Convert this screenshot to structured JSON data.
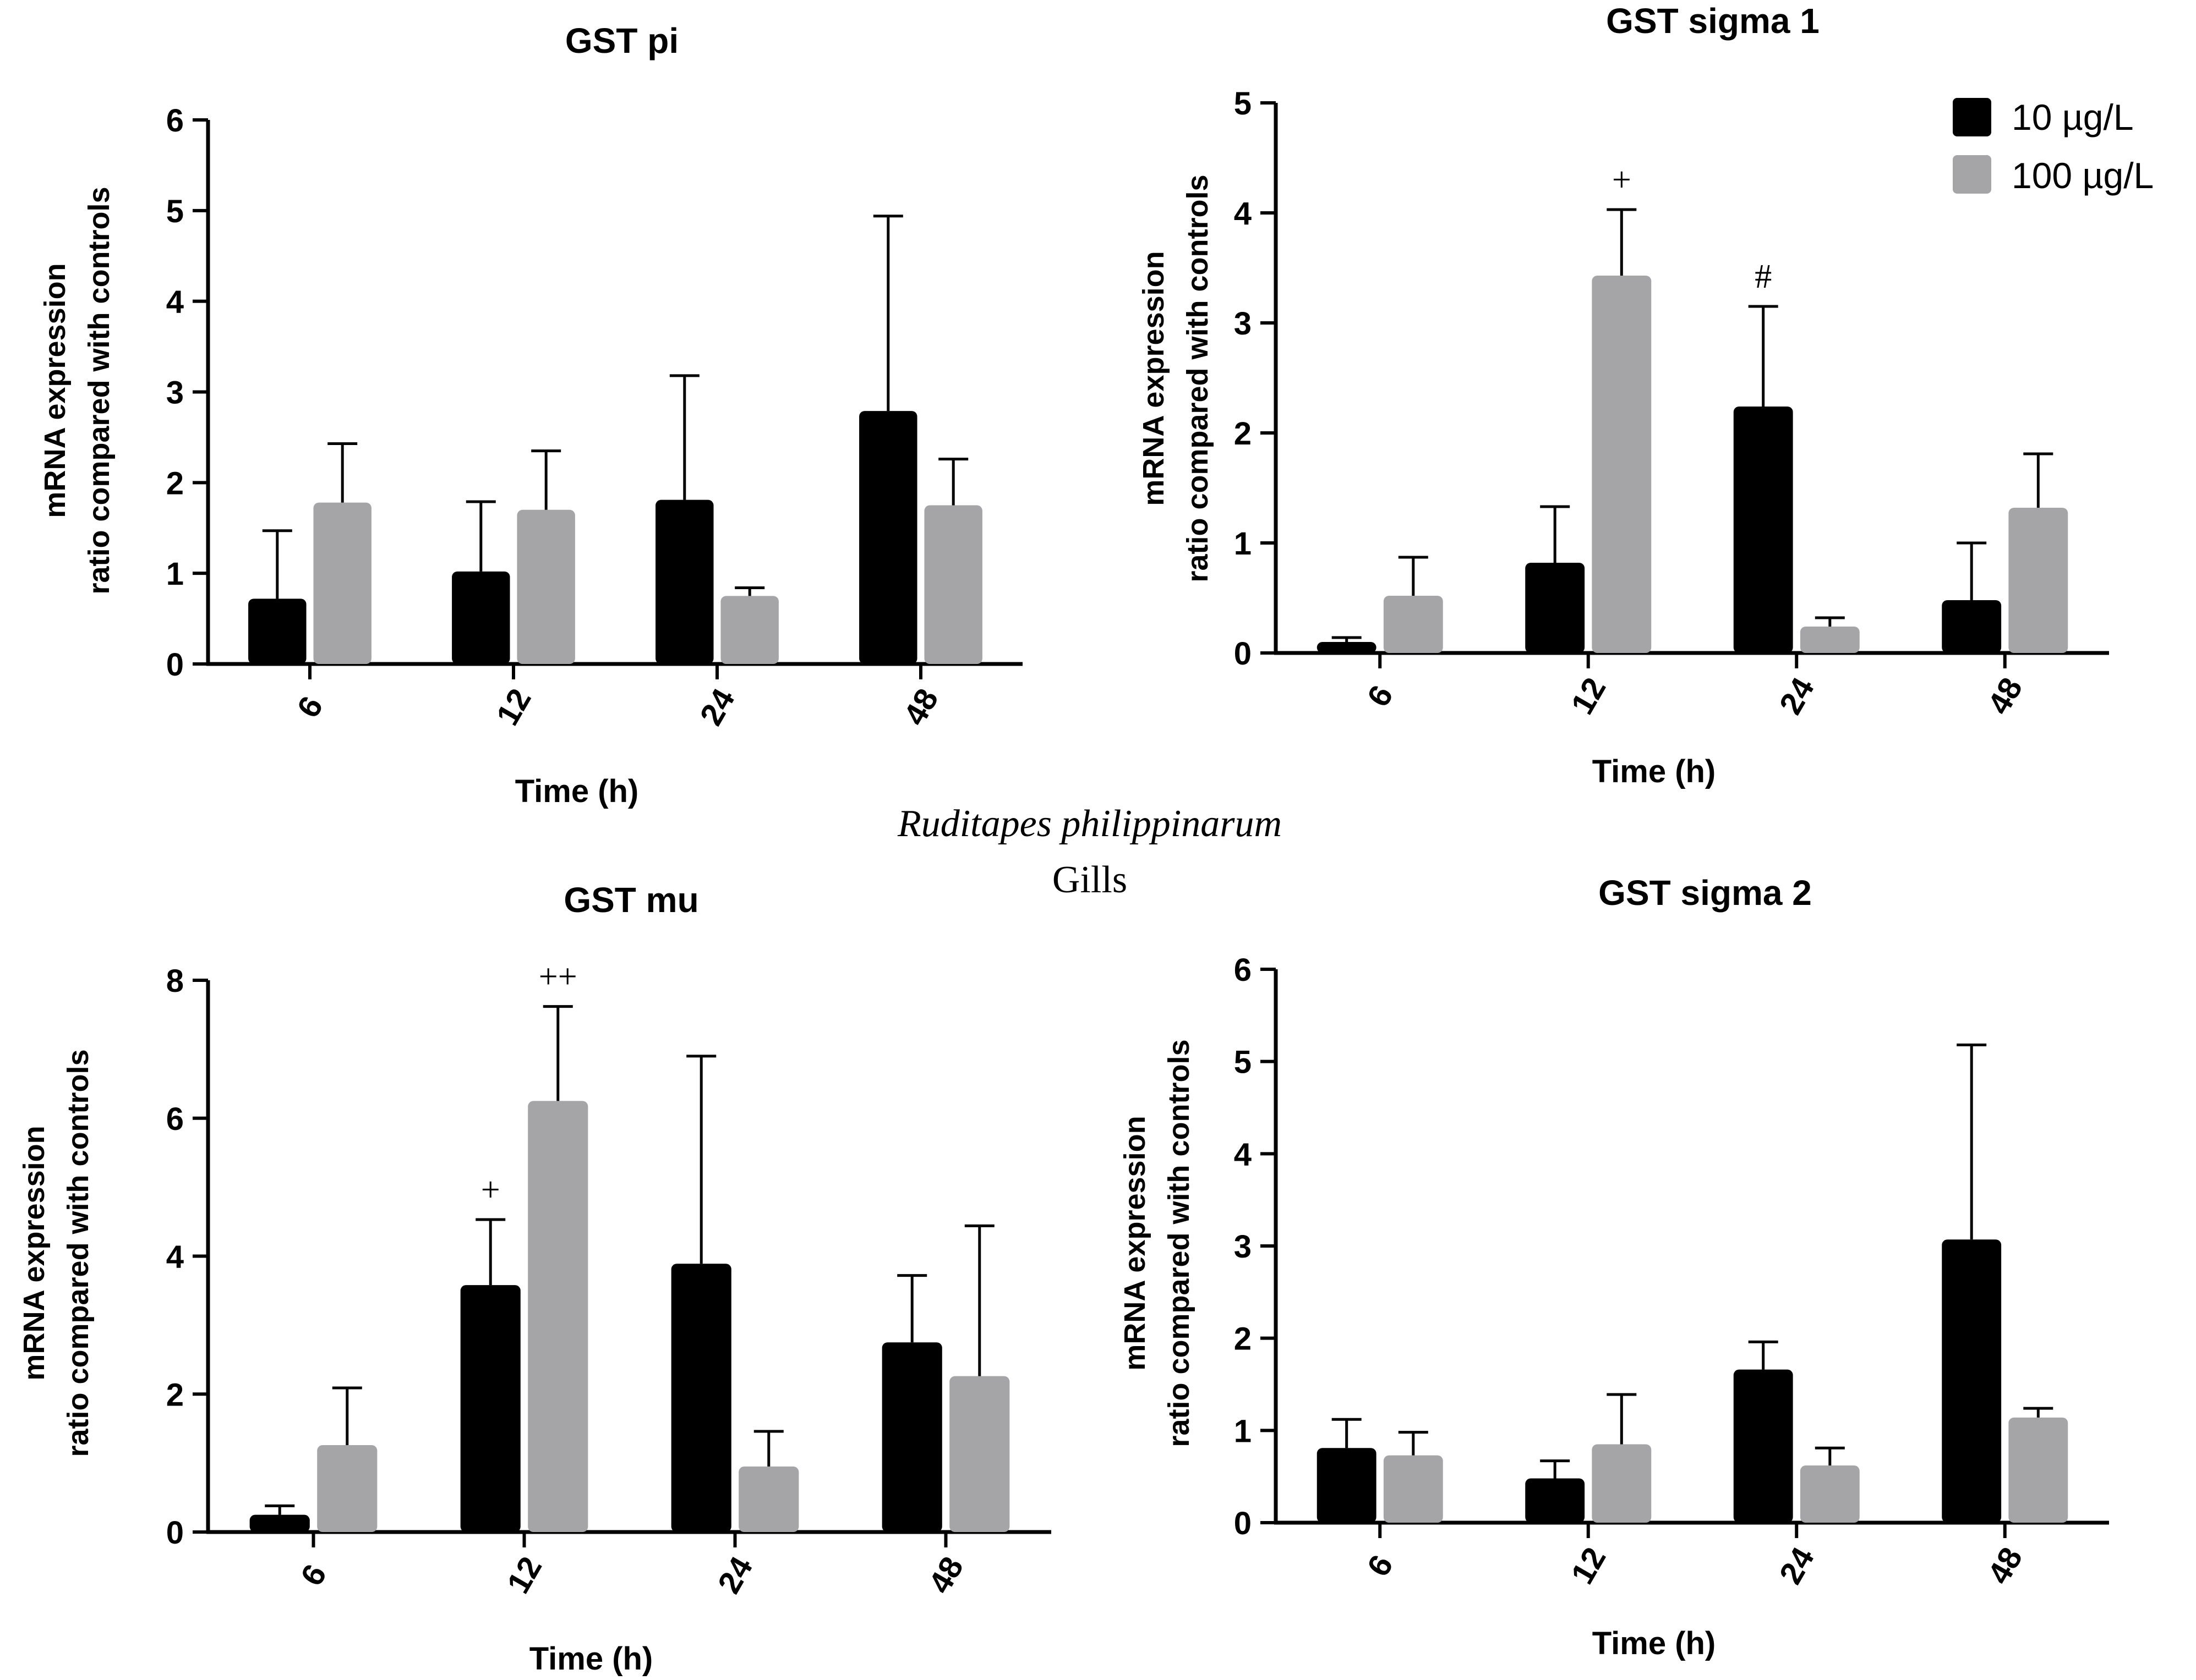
{
  "figure": {
    "species": "Ruditapes philippinarum",
    "tissue": "Gills"
  },
  "legend": {
    "entries": [
      {
        "label": "10 µg/L",
        "color": "#000000"
      },
      {
        "label": "100 µg/L",
        "color": "#a5a5a7"
      }
    ]
  },
  "chart_data": [
    {
      "id": "gst-pi",
      "type": "bar",
      "title": "GST pi",
      "xlabel": "Time (h)",
      "ylabel": [
        "mRNA expression",
        "ratio compared with controls"
      ],
      "categories": [
        "6",
        "12",
        "24",
        "48"
      ],
      "ylim": [
        0,
        6
      ],
      "yticks": [
        "0",
        "1",
        "2",
        "3",
        "4",
        "5",
        "6"
      ],
      "series": [
        {
          "name": "10 µg/L",
          "color": "#000000",
          "values": [
            0.72,
            1.02,
            1.81,
            2.79
          ],
          "errors": [
            0.75,
            0.77,
            1.37,
            2.15
          ]
        },
        {
          "name": "100 µg/L",
          "color": "#a5a5a7",
          "values": [
            1.78,
            1.7,
            0.75,
            1.75
          ],
          "errors": [
            0.65,
            0.65,
            0.09,
            0.51
          ]
        }
      ],
      "annotations": []
    },
    {
      "id": "gst-sigma-1",
      "type": "bar",
      "title": "GST sigma 1",
      "xlabel": "Time (h)",
      "ylabel": [
        "mRNA expression",
        "ratio compared with controls"
      ],
      "categories": [
        "6",
        "12",
        "24",
        "48"
      ],
      "ylim": [
        0,
        5
      ],
      "yticks": [
        "0",
        "1",
        "2",
        "3",
        "4",
        "5"
      ],
      "series": [
        {
          "name": "10 µg/L",
          "color": "#000000",
          "values": [
            0.1,
            0.82,
            2.24,
            0.48
          ],
          "errors": [
            0.04,
            0.51,
            0.91,
            0.52
          ]
        },
        {
          "name": "100 µg/L",
          "color": "#a5a5a7",
          "values": [
            0.52,
            3.43,
            0.24,
            1.32
          ],
          "errors": [
            0.35,
            0.6,
            0.08,
            0.49
          ]
        }
      ],
      "annotations": [
        {
          "text": "+",
          "category": 1,
          "series": 1
        },
        {
          "text": "#",
          "category": 2,
          "series": 0
        }
      ]
    },
    {
      "id": "gst-mu",
      "type": "bar",
      "title": "GST mu",
      "xlabel": "Time (h)",
      "ylabel": [
        "mRNA expression",
        "ratio compared with controls"
      ],
      "categories": [
        "6",
        "12",
        "24",
        "48"
      ],
      "ylim": [
        0,
        8
      ],
      "yticks": [
        "0",
        "2",
        "4",
        "6",
        "8"
      ],
      "series": [
        {
          "name": "10 µg/L",
          "color": "#000000",
          "values": [
            0.25,
            3.58,
            3.89,
            2.75
          ],
          "errors": [
            0.13,
            0.95,
            3.01,
            0.97
          ]
        },
        {
          "name": "100 µg/L",
          "color": "#a5a5a7",
          "values": [
            1.26,
            6.25,
            0.95,
            2.26
          ],
          "errors": [
            0.83,
            1.37,
            0.51,
            2.18
          ]
        }
      ],
      "annotations": [
        {
          "text": "+",
          "category": 1,
          "series": 0
        },
        {
          "text": "++",
          "category": 1,
          "series": 1
        }
      ]
    },
    {
      "id": "gst-sigma-2",
      "type": "bar",
      "title": "GST sigma 2",
      "xlabel": "Time (h)",
      "ylabel": [
        "mRNA expression",
        "ratio compared with controls"
      ],
      "categories": [
        "6",
        "12",
        "24",
        "48"
      ],
      "ylim": [
        0,
        6
      ],
      "yticks": [
        "0",
        "1",
        "2",
        "3",
        "4",
        "5",
        "6"
      ],
      "series": [
        {
          "name": "10 µg/L",
          "color": "#000000",
          "values": [
            0.81,
            0.48,
            1.66,
            3.07
          ],
          "errors": [
            0.31,
            0.19,
            0.3,
            2.11
          ]
        },
        {
          "name": "100 µg/L",
          "color": "#a5a5a7",
          "values": [
            0.73,
            0.85,
            0.62,
            1.14
          ],
          "errors": [
            0.25,
            0.54,
            0.19,
            0.1
          ]
        }
      ],
      "annotations": []
    }
  ]
}
